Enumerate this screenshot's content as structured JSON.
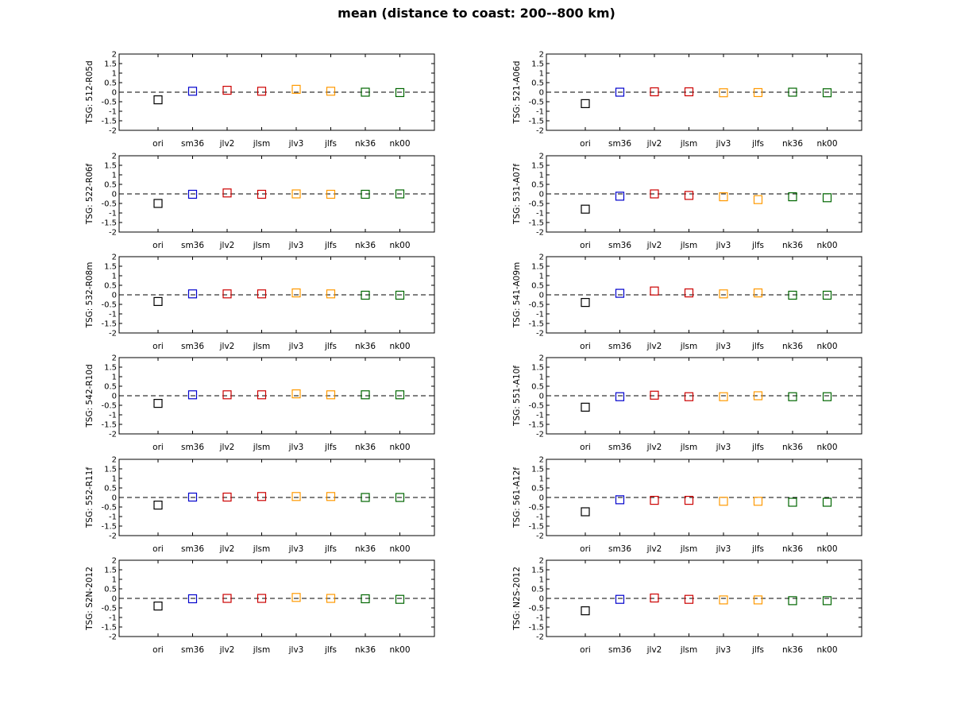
{
  "title": "mean (distance to coast: 200--800 km)",
  "colors": {
    "ori": "#000000",
    "sm36": "#0000cc",
    "jlv2": "#cc0000",
    "jlsm": "#cc0000",
    "jlv3": "#ff9900",
    "jlfs": "#ff9900",
    "nk36": "#006600",
    "nk00": "#006600"
  },
  "chart_data": [
    {
      "type": "scatter",
      "ylabel": "TSG: 512-R05d",
      "categories": [
        "ori",
        "sm36",
        "jlv2",
        "jlsm",
        "jlv3",
        "jlfs",
        "nk36",
        "nk00"
      ],
      "values": [
        -0.4,
        0.05,
        0.1,
        0.05,
        0.15,
        0.05,
        0.0,
        -0.02
      ],
      "ylim": [
        -2,
        2
      ],
      "yticks": [
        "2",
        "1.5",
        "1",
        "0.5",
        "0",
        "-0.5",
        "-1",
        "-1.5",
        "-2"
      ],
      "reference_line": 0
    },
    {
      "type": "scatter",
      "ylabel": "TSG: 521-A06d",
      "categories": [
        "ori",
        "sm36",
        "jlv2",
        "jlsm",
        "jlv3",
        "jlfs",
        "nk36",
        "nk00"
      ],
      "values": [
        -0.6,
        0.0,
        0.02,
        0.02,
        -0.03,
        -0.02,
        0.0,
        -0.03
      ],
      "ylim": [
        -2,
        2
      ],
      "yticks": [
        "2",
        "1.5",
        "1",
        "0.5",
        "0",
        "-0.5",
        "-1",
        "-1.5",
        "-2"
      ],
      "reference_line": 0
    },
    {
      "type": "scatter",
      "ylabel": "TSG: 522-R06f",
      "categories": [
        "ori",
        "sm36",
        "jlv2",
        "jlsm",
        "jlv3",
        "jlfs",
        "nk36",
        "nk00"
      ],
      "values": [
        -0.5,
        -0.02,
        0.05,
        -0.02,
        0.0,
        -0.02,
        -0.02,
        0.0
      ],
      "ylim": [
        -2,
        2
      ],
      "yticks": [
        "2",
        "1.5",
        "1",
        "0.5",
        "0",
        "-0.5",
        "-1",
        "-1.5",
        "-2"
      ],
      "reference_line": 0
    },
    {
      "type": "scatter",
      "ylabel": "TSG: 531-A07f",
      "categories": [
        "ori",
        "sm36",
        "jlv2",
        "jlsm",
        "jlv3",
        "jlfs",
        "nk36",
        "nk00"
      ],
      "values": [
        -0.8,
        -0.12,
        0.0,
        -0.08,
        -0.15,
        -0.3,
        -0.15,
        -0.2
      ],
      "ylim": [
        -2,
        2
      ],
      "yticks": [
        "2",
        "1.5",
        "1",
        "0.5",
        "0",
        "-0.5",
        "-1",
        "-1.5",
        "-2"
      ],
      "reference_line": 0
    },
    {
      "type": "scatter",
      "ylabel": "TSG: 532-R08m",
      "categories": [
        "ori",
        "sm36",
        "jlv2",
        "jlsm",
        "jlv3",
        "jlfs",
        "nk36",
        "nk00"
      ],
      "values": [
        -0.35,
        0.05,
        0.05,
        0.05,
        0.1,
        0.05,
        -0.02,
        -0.02
      ],
      "ylim": [
        -2,
        2
      ],
      "yticks": [
        "2",
        "1.5",
        "1",
        "0.5",
        "0",
        "-0.5",
        "-1",
        "-1.5",
        "-2"
      ],
      "reference_line": 0
    },
    {
      "type": "scatter",
      "ylabel": "TSG: 541-A09m",
      "categories": [
        "ori",
        "sm36",
        "jlv2",
        "jlsm",
        "jlv3",
        "jlfs",
        "nk36",
        "nk00"
      ],
      "values": [
        -0.4,
        0.08,
        0.2,
        0.1,
        0.05,
        0.1,
        -0.02,
        -0.02
      ],
      "ylim": [
        -2,
        2
      ],
      "yticks": [
        "2",
        "1.5",
        "1",
        "0.5",
        "0",
        "-0.5",
        "-1",
        "-1.5",
        "-2"
      ],
      "reference_line": 0
    },
    {
      "type": "scatter",
      "ylabel": "TSG: 542-R10d",
      "categories": [
        "ori",
        "sm36",
        "jlv2",
        "jlsm",
        "jlv3",
        "jlfs",
        "nk36",
        "nk00"
      ],
      "values": [
        -0.4,
        0.05,
        0.05,
        0.05,
        0.1,
        0.05,
        0.05,
        0.05
      ],
      "ylim": [
        -2,
        2
      ],
      "yticks": [
        "2",
        "1.5",
        "1",
        "0.5",
        "0",
        "-0.5",
        "-1",
        "-1.5",
        "-2"
      ],
      "reference_line": 0
    },
    {
      "type": "scatter",
      "ylabel": "TSG: 551-A10f",
      "categories": [
        "ori",
        "sm36",
        "jlv2",
        "jlsm",
        "jlv3",
        "jlfs",
        "nk36",
        "nk00"
      ],
      "values": [
        -0.6,
        -0.05,
        0.03,
        -0.05,
        -0.05,
        0.0,
        -0.05,
        -0.05
      ],
      "ylim": [
        -2,
        2
      ],
      "yticks": [
        "2",
        "1.5",
        "1",
        "0.5",
        "0",
        "-0.5",
        "-1",
        "-1.5",
        "-2"
      ],
      "reference_line": 0
    },
    {
      "type": "scatter",
      "ylabel": "TSG: 552-R11f",
      "categories": [
        "ori",
        "sm36",
        "jlv2",
        "jlsm",
        "jlv3",
        "jlfs",
        "nk36",
        "nk00"
      ],
      "values": [
        -0.4,
        0.02,
        0.02,
        0.05,
        0.05,
        0.05,
        0.0,
        0.0
      ],
      "ylim": [
        -2,
        2
      ],
      "yticks": [
        "2",
        "1.5",
        "1",
        "0.5",
        "0",
        "-0.5",
        "-1",
        "-1.5",
        "-2"
      ],
      "reference_line": 0
    },
    {
      "type": "scatter",
      "ylabel": "TSG: 561-A12f",
      "categories": [
        "ori",
        "sm36",
        "jlv2",
        "jlsm",
        "jlv3",
        "jlfs",
        "nk36",
        "nk00"
      ],
      "values": [
        -0.75,
        -0.12,
        -0.15,
        -0.15,
        -0.2,
        -0.2,
        -0.25,
        -0.25
      ],
      "ylim": [
        -2,
        2
      ],
      "yticks": [
        "2",
        "1.5",
        "1",
        "0.5",
        "0",
        "-0.5",
        "-1",
        "-1.5",
        "-2"
      ],
      "reference_line": 0
    },
    {
      "type": "scatter",
      "ylabel": "TSG: S2N-2012",
      "categories": [
        "ori",
        "sm36",
        "jlv2",
        "jlsm",
        "jlv3",
        "jlfs",
        "nk36",
        "nk00"
      ],
      "values": [
        -0.4,
        -0.02,
        0.0,
        0.0,
        0.05,
        0.0,
        -0.02,
        -0.05
      ],
      "ylim": [
        -2,
        2
      ],
      "yticks": [
        "2",
        "1.5",
        "1",
        "0.5",
        "0",
        "-0.5",
        "-1",
        "-1.5",
        "-2"
      ],
      "reference_line": 0
    },
    {
      "type": "scatter",
      "ylabel": "TSG: N2S-2012",
      "categories": [
        "ori",
        "sm36",
        "jlv2",
        "jlsm",
        "jlv3",
        "jlfs",
        "nk36",
        "nk00"
      ],
      "values": [
        -0.65,
        -0.05,
        0.02,
        -0.05,
        -0.08,
        -0.08,
        -0.12,
        -0.12
      ],
      "ylim": [
        -2,
        2
      ],
      "yticks": [
        "2",
        "1.5",
        "1",
        "0.5",
        "0",
        "-0.5",
        "-1",
        "-1.5",
        "-2"
      ],
      "reference_line": 0
    }
  ]
}
